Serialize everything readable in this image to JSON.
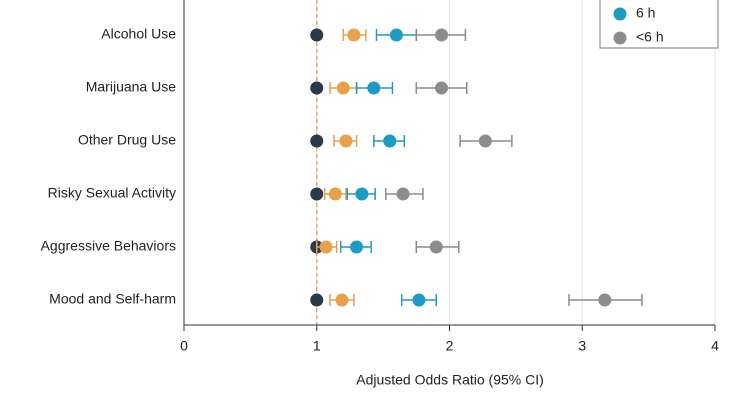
{
  "chart_data": {
    "type": "forest",
    "x_label": "Adjusted Odds Ratio (95% CI)",
    "categories": [
      "Alcohol Use",
      "Marijuana Use",
      "Other Drug Use",
      "Risky Sexual Activity",
      "Aggressive Behaviors",
      "Mood and Self-harm"
    ],
    "xlim": [
      0,
      4
    ],
    "xticks": [
      0,
      1,
      2,
      3,
      4
    ],
    "grid": true,
    "reference": 1,
    "reference_color": "#e8a04a",
    "legend": "upper right",
    "series": [
      {
        "color": "#2b3a48",
        "values": [
          1,
          1,
          1,
          1,
          1,
          1
        ]
      },
      {
        "color": "#e8a04a",
        "values": [
          1.28,
          1.2,
          1.22,
          1.14,
          1.07,
          1.19
        ],
        "lower": [
          1.2,
          1.1,
          1.13,
          1.06,
          1.0,
          1.1
        ],
        "upper": [
          1.37,
          1.3,
          1.3,
          1.22,
          1.15,
          1.28
        ]
      },
      {
        "name": "6 h",
        "color": "#1e9bc4",
        "values": [
          1.6,
          1.43,
          1.55,
          1.34,
          1.3,
          1.77
        ],
        "lower": [
          1.45,
          1.3,
          1.43,
          1.23,
          1.18,
          1.64
        ],
        "upper": [
          1.75,
          1.57,
          1.66,
          1.44,
          1.41,
          1.9
        ]
      },
      {
        "name": "<6 h",
        "color": "#8c8c8c",
        "values": [
          1.94,
          1.94,
          2.27,
          1.65,
          1.9,
          3.17
        ],
        "lower": [
          1.75,
          1.75,
          2.08,
          1.52,
          1.75,
          2.9
        ],
        "upper": [
          2.12,
          2.13,
          2.47,
          1.8,
          2.07,
          3.45
        ]
      }
    ]
  }
}
